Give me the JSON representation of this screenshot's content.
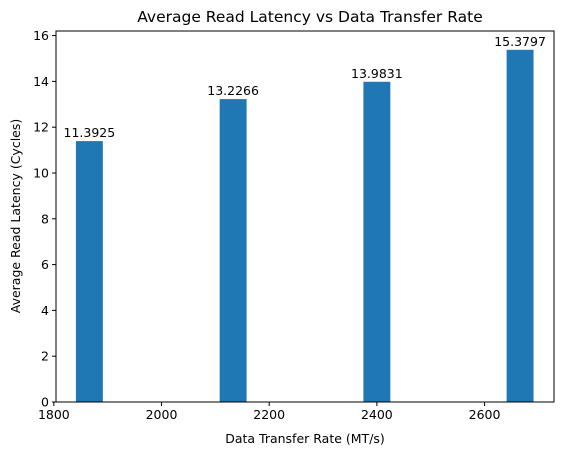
{
  "chart_data": {
    "type": "bar",
    "title": "Average Read Latency vs Data Transfer Rate",
    "xlabel": "Data Transfer Rate (MT/s)",
    "ylabel": "Average Read Latency (Cycles)",
    "x": [
      1866,
      2133,
      2400,
      2666
    ],
    "values": [
      11.3925,
      13.2266,
      13.9831,
      15.3797
    ],
    "value_labels": [
      "11.3925",
      "13.2266",
      "13.9831",
      "15.3797"
    ],
    "bar_width": 50,
    "xlim": [
      1804,
      2729
    ],
    "ylim": [
      0,
      16.2
    ],
    "xticks": [
      1800,
      2000,
      2200,
      2400,
      2600
    ],
    "xtick_labels": [
      "1800",
      "2000",
      "2200",
      "2400",
      "2600"
    ],
    "yticks": [
      0,
      2,
      4,
      6,
      8,
      10,
      12,
      14,
      16
    ],
    "ytick_labels": [
      "0",
      "2",
      "4",
      "6",
      "8",
      "10",
      "12",
      "14",
      "16"
    ],
    "grid": false,
    "legend": "none",
    "bar_color": "#1f77b4"
  }
}
